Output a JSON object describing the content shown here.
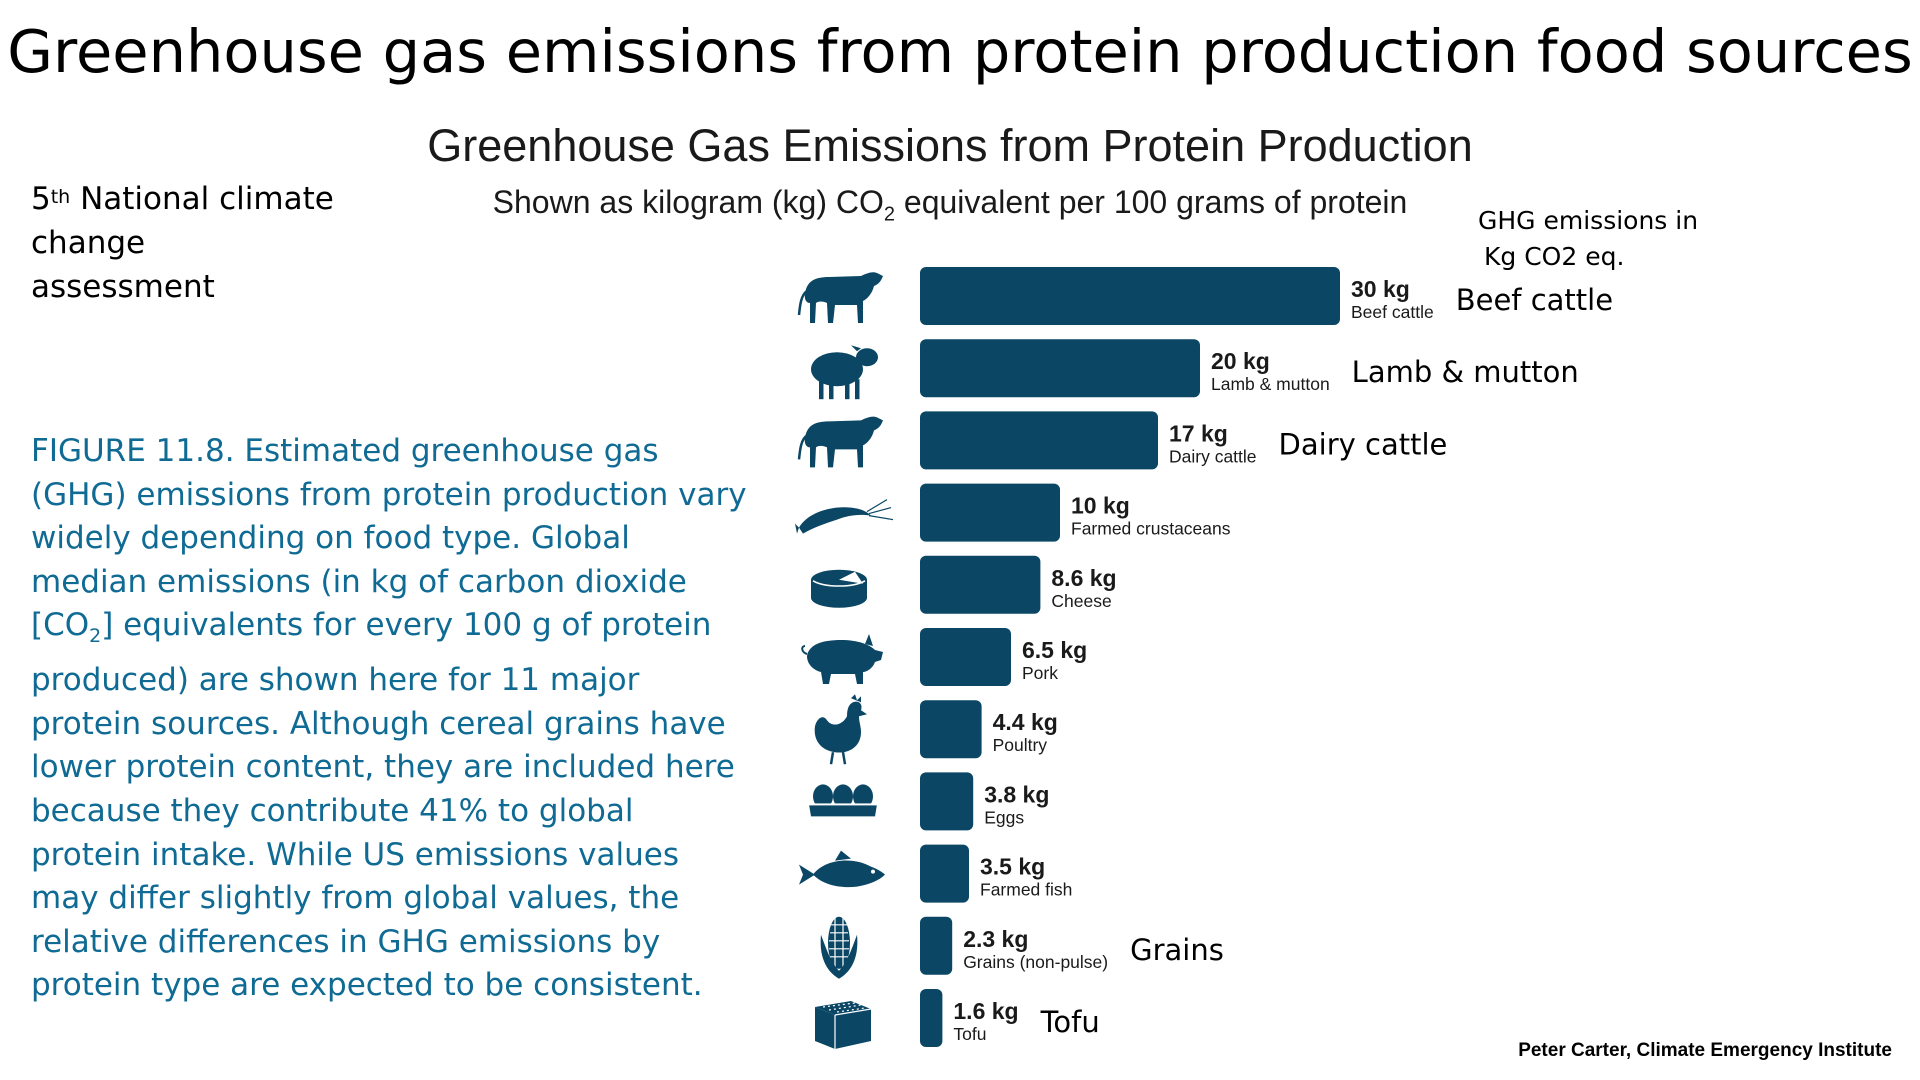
{
  "slide_title": "Greenhouse gas emissions from protein production food sources",
  "source_note": {
    "prefix": "5",
    "superscript": "th",
    "line1_rest": " National climate",
    "line2": "change",
    "line3": "assessment"
  },
  "caption": {
    "before_sub": "FIGURE 11.8. Estimated greenhouse gas (GHG) emissions from protein production vary widely depending on food type. Global median emissions (in kg of carbon dioxide [CO",
    "sub": "2",
    "after_sub": "] equivalents for every 100 g of protein produced) are shown here for 11 major protein sources. Although cereal grains have lower protein content, they are included here because they contribute 41% to global protein intake. While US emissions values may differ slightly from global values, the relative differences in GHG emissions by protein type are expected to be consistent."
  },
  "ghg_note": {
    "line1": "GHG emissions in",
    "line2": "Kg CO2 eq."
  },
  "credit": "Peter Carter, Climate Emergency Institute",
  "colors": {
    "bar": "#0b4765",
    "icon": "#0b4765",
    "caption": "#0f6a94"
  },
  "chart_data": {
    "type": "bar",
    "orientation": "horizontal",
    "title": "Greenhouse Gas Emissions from Protein Production",
    "subtitle_before": "Shown as kilogram (kg) CO",
    "subtitle_sub": "2",
    "subtitle_after": " equivalent per 100 grams of protein",
    "xlim": [
      0,
      30
    ],
    "grid": false,
    "categories": [
      "Beef cattle",
      "Lamb & mutton",
      "Dairy cattle",
      "Farmed crustaceans",
      "Cheese",
      "Pork",
      "Poultry",
      "Eggs",
      "Farmed fish",
      "Grains (non-pulse)",
      "Tofu"
    ],
    "values": [
      30,
      20,
      17,
      10,
      8.6,
      6.5,
      4.4,
      3.8,
      3.5,
      2.3,
      1.6
    ],
    "value_labels": [
      "30 kg",
      "20 kg",
      "17 kg",
      "10 kg",
      "8.6 kg",
      "6.5 kg",
      "4.4 kg",
      "3.8 kg",
      "3.5 kg",
      "2.3 kg",
      "1.6 kg"
    ],
    "icons": [
      "cow-icon",
      "sheep-icon",
      "cow-icon",
      "shrimp-icon",
      "cheese-icon",
      "pig-icon",
      "chicken-icon",
      "eggs-icon",
      "fish-icon",
      "corn-icon",
      "tofu-icon"
    ],
    "annotations": [
      "Beef cattle",
      "Lamb & mutton",
      "Dairy cattle",
      "",
      "",
      "",
      "",
      "",
      "",
      "Grains",
      "Tofu"
    ]
  }
}
